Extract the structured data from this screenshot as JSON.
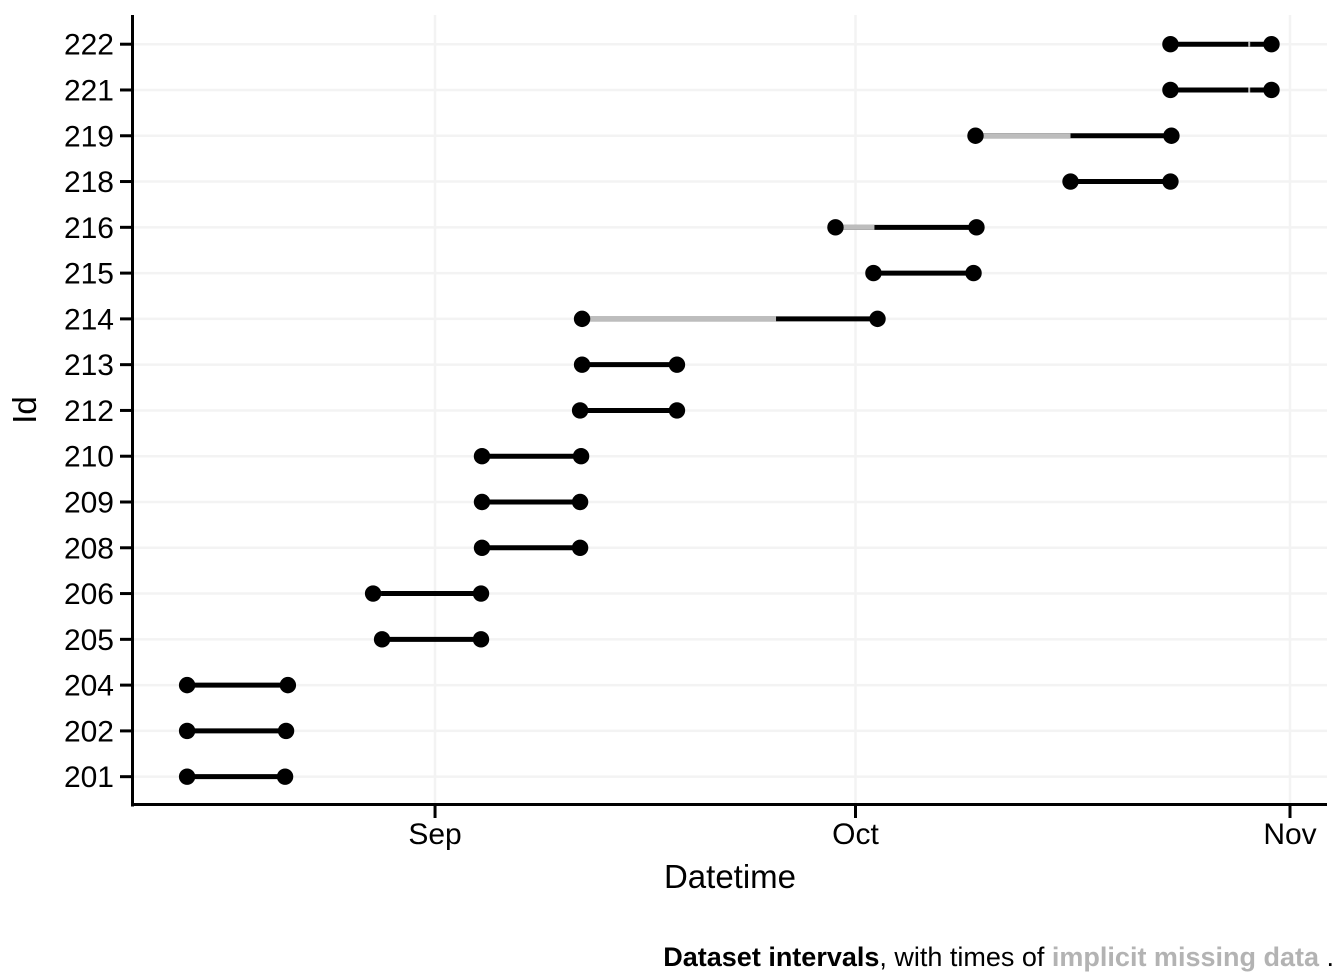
{
  "chart_data": {
    "type": "interval",
    "title": "",
    "xlabel": "Datetime",
    "ylabel": "Id",
    "grid": "major gridlines only, very light gray; no top/right panel border",
    "legend": "none",
    "x_axis": {
      "unit": "days since Aug 1",
      "domain": [
        9.45,
        94.64
      ],
      "ticks": [
        {
          "label": "Sep",
          "t": 31
        },
        {
          "label": "Oct",
          "t": 61
        },
        {
          "label": "Nov",
          "t": 92
        }
      ]
    },
    "y_axis": {
      "categories_top_to_bottom": [
        "222",
        "221",
        "219",
        "218",
        "216",
        "215",
        "214",
        "213",
        "212",
        "210",
        "209",
        "208",
        "206",
        "205",
        "204",
        "202",
        "201"
      ]
    },
    "rows": [
      {
        "id": "222",
        "start": 83.47,
        "end": 90.68,
        "missing": [
          [
            89.02,
            89.16
          ]
        ],
        "approx_start": "Oct 23",
        "approx_end": "Oct 31"
      },
      {
        "id": "221",
        "start": 83.47,
        "end": 90.68,
        "missing": [
          [
            89.02,
            89.16
          ]
        ],
        "approx_start": "Oct 23",
        "approx_end": "Oct 31"
      },
      {
        "id": "219",
        "start": 69.56,
        "end": 83.54,
        "missing": [
          [
            69.56,
            76.34
          ]
        ],
        "approx_start": "Oct 10",
        "approx_end": "Oct 24"
      },
      {
        "id": "218",
        "start": 76.34,
        "end": 83.47,
        "missing": [],
        "approx_start": "Oct 16",
        "approx_end": "Oct 23"
      },
      {
        "id": "216",
        "start": 59.57,
        "end": 69.63,
        "missing": [
          [
            59.57,
            62.35
          ]
        ],
        "approx_start": "Sep 30",
        "approx_end": "Oct 10"
      },
      {
        "id": "215",
        "start": 62.28,
        "end": 69.42,
        "missing": [],
        "approx_start": "Oct 2",
        "approx_end": "Oct 9"
      },
      {
        "id": "214",
        "start": 41.49,
        "end": 62.57,
        "missing": [
          [
            41.49,
            55.33
          ]
        ],
        "approx_start": "Sep 11",
        "approx_end": "Oct 3"
      },
      {
        "id": "213",
        "start": 41.49,
        "end": 48.26,
        "missing": [],
        "approx_start": "Sep 11",
        "approx_end": "Sep 18"
      },
      {
        "id": "212",
        "start": 41.35,
        "end": 48.26,
        "missing": [],
        "approx_start": "Sep 11",
        "approx_end": "Sep 18"
      },
      {
        "id": "210",
        "start": 34.35,
        "end": 41.42,
        "missing": [],
        "approx_start": "Sep 4",
        "approx_end": "Sep 11"
      },
      {
        "id": "209",
        "start": 34.35,
        "end": 41.35,
        "missing": [],
        "approx_start": "Sep 4",
        "approx_end": "Sep 11"
      },
      {
        "id": "208",
        "start": 34.35,
        "end": 41.35,
        "missing": [],
        "approx_start": "Sep 4",
        "approx_end": "Sep 11"
      },
      {
        "id": "206",
        "start": 26.58,
        "end": 34.28,
        "missing": [
          [
            26.65,
            27.15
          ]
        ],
        "approx_start": "Aug 28",
        "approx_end": "Sep 4"
      },
      {
        "id": "205",
        "start": 27.22,
        "end": 34.28,
        "missing": [],
        "approx_start": "Aug 28",
        "approx_end": "Sep 4"
      },
      {
        "id": "204",
        "start": 13.31,
        "end": 20.5,
        "missing": [],
        "approx_start": "Aug 14",
        "approx_end": "Aug 21"
      },
      {
        "id": "202",
        "start": 13.31,
        "end": 20.37,
        "missing": [],
        "approx_start": "Aug 14",
        "approx_end": "Aug 21"
      },
      {
        "id": "201",
        "start": 13.31,
        "end": 20.3,
        "missing": [],
        "approx_start": "Aug 14",
        "approx_end": "Aug 21"
      }
    ],
    "colors": {
      "present_data": "#000000",
      "missing_data": "#bdbdbd",
      "gridline": "#f3f3f3",
      "axis": "#000000",
      "caption_gray": "#b3b3b3",
      "background": "#ffffff"
    }
  },
  "caption": {
    "part1": "Dataset intervals",
    "part2": ", with times of ",
    "part3": "implicit missing data",
    "part4": " ."
  }
}
